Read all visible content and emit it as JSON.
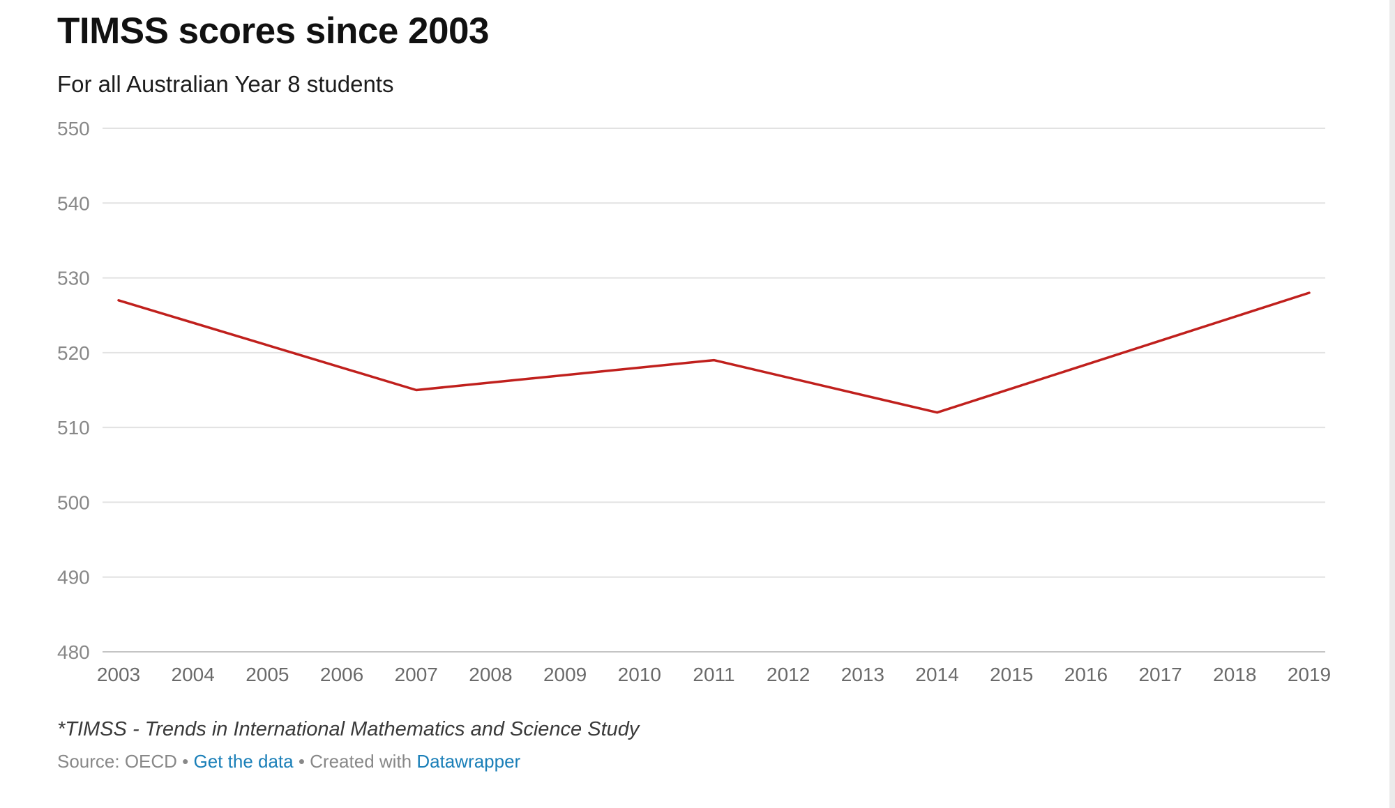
{
  "chart_data": {
    "type": "line",
    "title": "TIMSS scores since 2003",
    "subtitle": "For all Australian Year 8 students",
    "xlabel": "",
    "ylabel": "",
    "x": [
      2003,
      2004,
      2005,
      2006,
      2007,
      2008,
      2009,
      2010,
      2011,
      2012,
      2013,
      2014,
      2015,
      2016,
      2017,
      2018,
      2019
    ],
    "series": [
      {
        "values": [
          527,
          null,
          null,
          null,
          515,
          null,
          null,
          null,
          519,
          null,
          null,
          512,
          null,
          null,
          null,
          null,
          528
        ]
      }
    ],
    "line_points": [
      [
        2003,
        527
      ],
      [
        2007,
        515
      ],
      [
        2011,
        519
      ],
      [
        2014,
        512
      ],
      [
        2019,
        528
      ]
    ],
    "ylim": [
      480,
      550
    ],
    "yticks": [
      550,
      540,
      530,
      520,
      510,
      500,
      490,
      480
    ],
    "grid": true,
    "line_color": "#c0201d"
  },
  "footer": {
    "note": "*TIMSS - Trends in International Mathematics and Science Study",
    "source_prefix": "Source: OECD • ",
    "get_data_link": "Get the data",
    "created_with": " • Created with ",
    "datawrapper_link": "Datawrapper"
  }
}
